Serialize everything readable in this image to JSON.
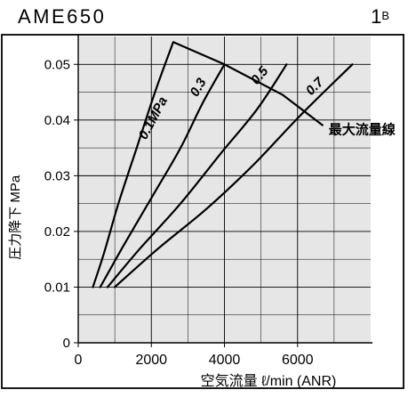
{
  "header": {
    "model": "AME650",
    "size_number": "1",
    "size_letter": "B"
  },
  "chart_data": {
    "type": "line",
    "title": "AME650",
    "xlabel": "空気流量 ℓ/min (ANR)",
    "ylabel": "圧力降下 MPa",
    "xlim": [
      0,
      8000
    ],
    "ylim": [
      0,
      0.055
    ],
    "x_ticks": [
      {
        "value": 0,
        "label": "0"
      },
      {
        "value": 2000,
        "label": "2000"
      },
      {
        "value": 4000,
        "label": "4000"
      },
      {
        "value": 6000,
        "label": "6000"
      }
    ],
    "y_ticks": [
      {
        "value": 0,
        "label": "0"
      },
      {
        "value": 0.01,
        "label": "0.01"
      },
      {
        "value": 0.02,
        "label": "0.02"
      },
      {
        "value": 0.03,
        "label": "0.03"
      },
      {
        "value": 0.04,
        "label": "0.04"
      },
      {
        "value": 0.05,
        "label": "0.05"
      }
    ],
    "grid": true,
    "background": "#e6e6e6",
    "line_color": "#000000",
    "series": [
      {
        "name": "0.1MPa",
        "label_pos": [
          2150,
          0.04
        ],
        "label_rot": -62,
        "points": [
          [
            400,
            0.01
          ],
          [
            700,
            0.016
          ],
          [
            1100,
            0.025
          ],
          [
            1600,
            0.035
          ],
          [
            2100,
            0.045
          ],
          [
            2600,
            0.054
          ]
        ]
      },
      {
        "name": "0.3",
        "label_pos": [
          3380,
          0.0455
        ],
        "label_rot": -60,
        "points": [
          [
            600,
            0.01
          ],
          [
            1200,
            0.017
          ],
          [
            2000,
            0.026
          ],
          [
            2800,
            0.035
          ],
          [
            3400,
            0.043
          ],
          [
            4000,
            0.05
          ]
        ]
      },
      {
        "name": "0.5",
        "label_pos": [
          5050,
          0.0475
        ],
        "label_rot": -50,
        "points": [
          [
            800,
            0.01
          ],
          [
            1700,
            0.017
          ],
          [
            2800,
            0.025
          ],
          [
            3900,
            0.034
          ],
          [
            4900,
            0.042
          ],
          [
            5700,
            0.05
          ]
        ]
      },
      {
        "name": "0.7",
        "label_pos": [
          6550,
          0.0455
        ],
        "label_rot": -45,
        "points": [
          [
            1000,
            0.01
          ],
          [
            2200,
            0.017
          ],
          [
            3500,
            0.024
          ],
          [
            4800,
            0.032
          ],
          [
            6100,
            0.041
          ],
          [
            7500,
            0.05
          ]
        ]
      }
    ],
    "max_flow_line": {
      "name": "最大流量線",
      "label_pos": [
        6850,
        0.0375
      ],
      "points": [
        [
          2600,
          0.054
        ],
        [
          4000,
          0.05
        ],
        [
          5600,
          0.0445
        ],
        [
          6700,
          0.039
        ]
      ]
    }
  }
}
